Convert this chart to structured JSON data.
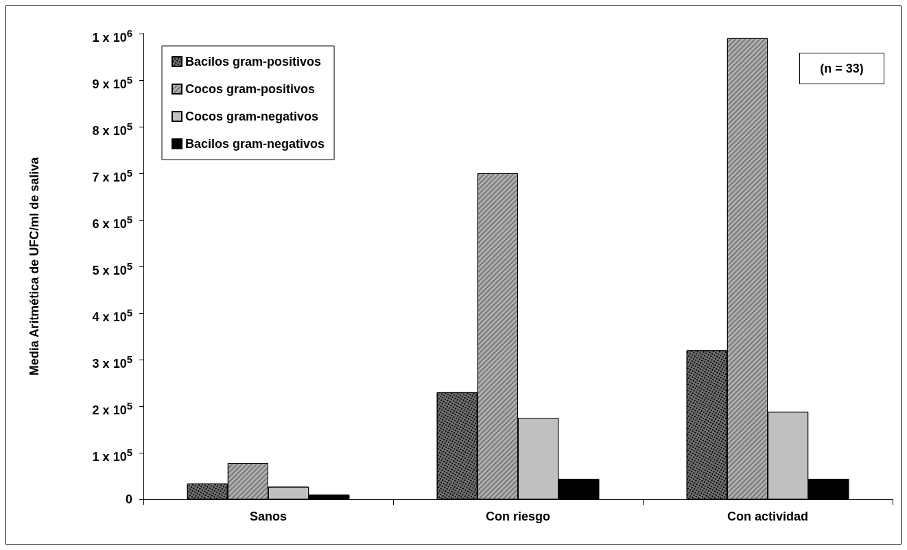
{
  "chart_data": {
    "type": "bar",
    "ylabel": "Media Aritmética de UFC/ml de saliva",
    "categories": [
      "Sanos",
      "Con riesgo",
      "Con actividad"
    ],
    "series": [
      {
        "name": "Bacilos gram-positivos",
        "color": "#707070",
        "values": [
          34000,
          230000,
          320000
        ]
      },
      {
        "name": "Cocos gram-positivos",
        "color": "#b0b0b0",
        "values": [
          78000,
          700000,
          990000
        ]
      },
      {
        "name": "Cocos gram-negativos",
        "color": "#c0c0c0",
        "values": [
          27000,
          175000,
          188000
        ]
      },
      {
        "name": "Bacilos gram-negativos",
        "color": "#000000",
        "values": [
          10000,
          44000,
          44000
        ]
      }
    ],
    "ylim": [
      0,
      1000000
    ],
    "yticks": [
      0,
      {
        "value": 100000,
        "label": "1 x 10$^{5}$"
      },
      {
        "value": 200000,
        "label": "2 x 10$^{5}$"
      },
      {
        "value": 300000,
        "label": "3 x 10$^{5}$"
      },
      {
        "value": 400000,
        "label": "4 x 10$^{5}$"
      },
      {
        "value": 500000,
        "label": "5 x 10$^{5}$"
      },
      {
        "value": 600000,
        "label": "6 x 10$^{5}$"
      },
      {
        "value": 700000,
        "label": "7 x 10$^{5}$"
      },
      {
        "value": 800000,
        "label": "8 x 10$^{5}$"
      },
      {
        "value": 900000,
        "label": "9 x 10$^{5}$"
      },
      {
        "value": 1000000,
        "label": "1 x 10$^{6}$"
      }
    ],
    "grid": false,
    "legend": "top left",
    "annotations": [
      "(n = 33)"
    ]
  }
}
